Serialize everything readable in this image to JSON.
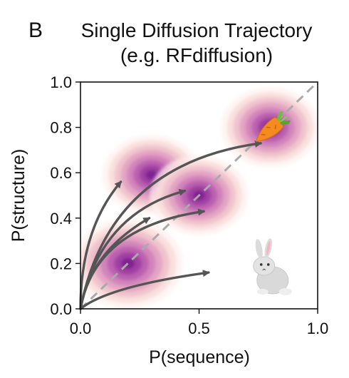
{
  "panel_letter": "B",
  "title_line1": "Single Diffusion Trajectory",
  "title_line2": "(e.g. RFdiffusion)",
  "chart_data": {
    "type": "contour",
    "xlabel": "P(sequence)",
    "ylabel": "P(structure)",
    "xlim": [
      0.0,
      1.0
    ],
    "ylim": [
      0.0,
      1.0
    ],
    "xticks": [
      "0.0",
      "0.5",
      "1.0"
    ],
    "yticks": [
      "0.0",
      "0.2",
      "0.4",
      "0.6",
      "0.8",
      "1.0"
    ],
    "xtick_values": [
      0.0,
      0.5,
      1.0
    ],
    "ytick_values": [
      0.0,
      0.2,
      0.4,
      0.6,
      0.8,
      1.0
    ],
    "grid": false,
    "diagonal_line": {
      "from": [
        0.0,
        0.0
      ],
      "to": [
        1.0,
        1.0
      ],
      "style": "dashed",
      "color": "#aaaaaa"
    },
    "density_peaks": [
      {
        "x": 0.2,
        "y": 0.2,
        "spread": 0.09
      },
      {
        "x": 0.3,
        "y": 0.59,
        "spread": 0.08
      },
      {
        "x": 0.5,
        "y": 0.5,
        "spread": 0.08
      },
      {
        "x": 0.8,
        "y": 0.8,
        "spread": 0.08
      }
    ],
    "density_colors": [
      "#fdf1ee",
      "#f8ddd9",
      "#efbfcc",
      "#e29fc1",
      "#cf7fba",
      "#b85aae",
      "#9b3aa0",
      "#7a1d8e"
    ],
    "trajectories": [
      {
        "control": [
          0.0,
          0.35
        ],
        "end": [
          0.17,
          0.56
        ]
      },
      {
        "control": [
          0.04,
          0.25
        ],
        "end": [
          0.29,
          0.4
        ]
      },
      {
        "control": [
          0.06,
          0.36
        ],
        "end": [
          0.52,
          0.43
        ]
      },
      {
        "control": [
          0.08,
          0.42
        ],
        "end": [
          0.44,
          0.52
        ]
      },
      {
        "control": [
          0.12,
          0.64
        ],
        "end": [
          0.76,
          0.73
        ]
      },
      {
        "control": [
          0.12,
          0.1
        ],
        "end": [
          0.54,
          0.16
        ]
      }
    ],
    "trajectory_color": "#555555",
    "start_point": [
      0.0,
      0.0
    ],
    "icons": [
      {
        "name": "carrot",
        "x": 0.8,
        "y": 0.79
      },
      {
        "name": "rabbit",
        "x": 0.78,
        "y": 0.17
      }
    ]
  }
}
